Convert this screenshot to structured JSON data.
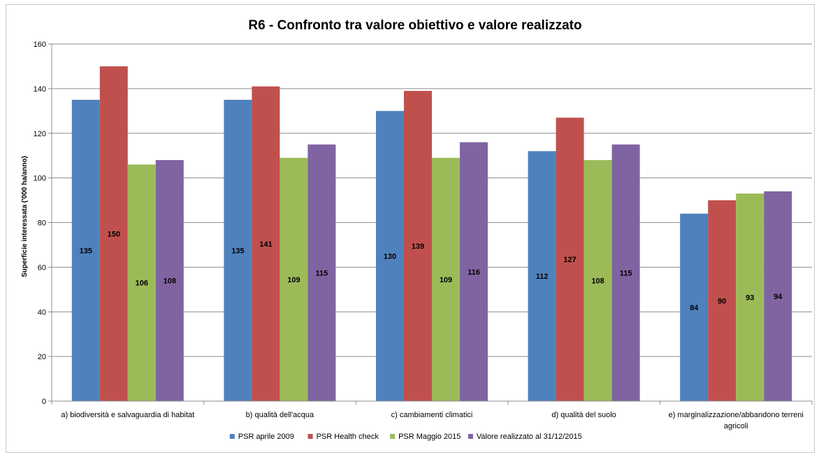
{
  "chart_data": {
    "type": "bar",
    "title": "R6 - Confronto tra valore obiettivo e valore realizzato",
    "xlabel": "",
    "ylabel": "Superficie interessata ('000 ha/anno)",
    "ylim": [
      0,
      160
    ],
    "yticks": [
      0,
      20,
      40,
      60,
      80,
      100,
      120,
      140,
      160
    ],
    "grid": true,
    "legend_position": "bottom",
    "categories": [
      [
        "a) biodiversità e salvaguardia di habitat"
      ],
      [
        "b) qualità dell'acqua"
      ],
      [
        "c) cambiamenti climatici"
      ],
      [
        "d) qualità del suolo"
      ],
      [
        "e) marginalizzazione/abbandono terreni",
        "agricoli"
      ]
    ],
    "series": [
      {
        "name": "PSR aprile 2009",
        "color": "#4f81bd",
        "values": [
          135,
          135,
          130,
          112,
          84
        ]
      },
      {
        "name": "PSR Health check",
        "color": "#c0504d",
        "values": [
          150,
          141,
          139,
          127,
          90
        ]
      },
      {
        "name": "PSR Maggio 2015",
        "color": "#9bbb59",
        "values": [
          106,
          109,
          109,
          108,
          93
        ]
      },
      {
        "name": "Valore realizzato al 31/12/2015",
        "color": "#8064a2",
        "values": [
          108,
          115,
          116,
          115,
          94
        ]
      }
    ]
  }
}
